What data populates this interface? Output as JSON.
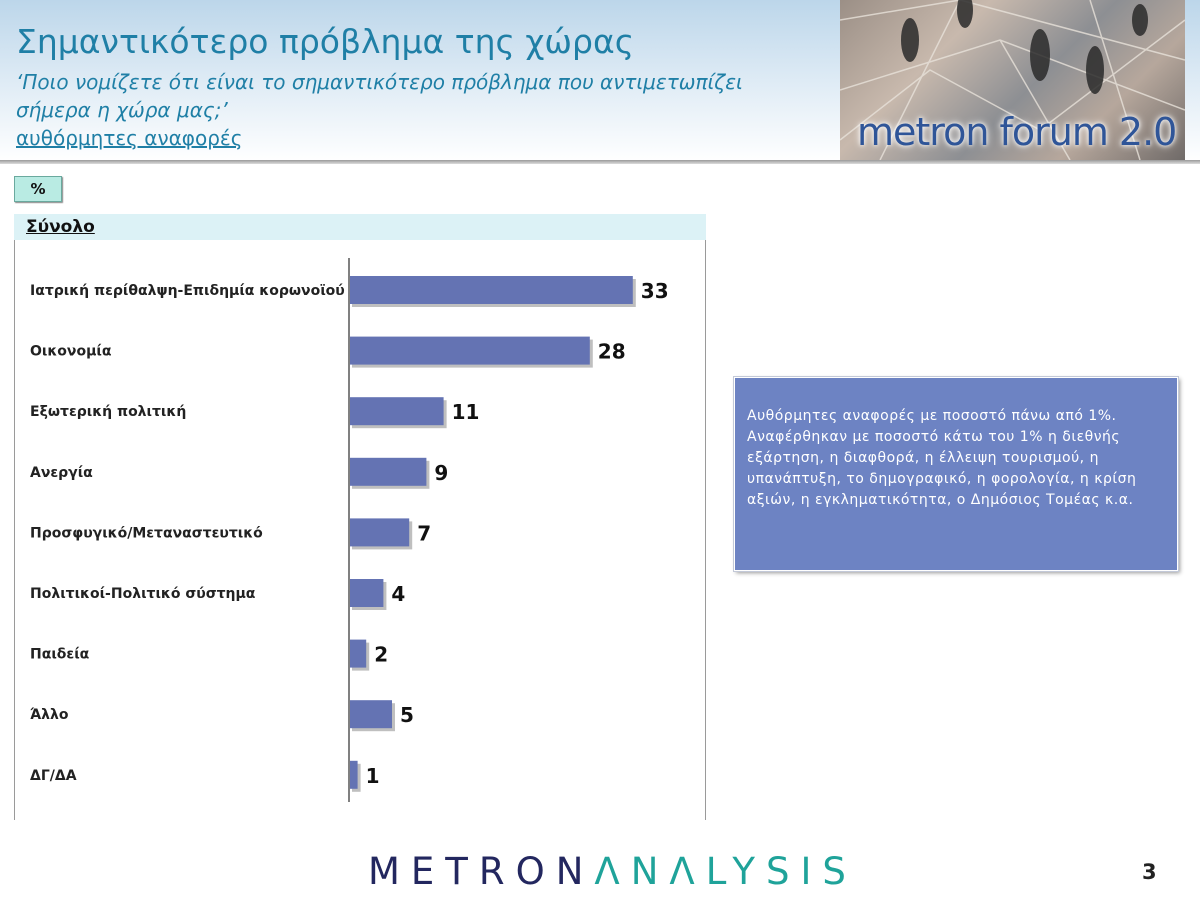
{
  "header": {
    "title": "Σημαντικότερο πρόβλημα της χώρας",
    "question": "‘Ποιο νομίζετε ότι  είναι το σημαντικότερο πρόβλημα που αντιμετωπίζει σήμερα η χώρα μας;’",
    "subnote": "αυθόρμητες αναφορές",
    "brand": "metron forum 2.0"
  },
  "unit_badge": "%",
  "chart_data": {
    "type": "bar",
    "orientation": "horizontal",
    "title": "Σύνολο",
    "categories": [
      "Ιατρική περίθαλψη-Επιδημία κορωνοϊού",
      "Οικονομία",
      "Εξωτερική πολιτική",
      "Ανεργία",
      "Προσφυγικό/Μεταναστευτικό",
      "Πολιτικοί-Πολιτικό σύστημα",
      "Παιδεία",
      "Άλλο",
      "ΔΓ/ΔΑ"
    ],
    "values": [
      33,
      28,
      11,
      9,
      7,
      4,
      2,
      5,
      1
    ],
    "xlim": [
      0,
      40
    ],
    "bar_color": "#6473b3",
    "grid": false
  },
  "note": "Αυθόρμητες αναφορές με ποσοστό πάνω από 1%. Αναφέρθηκαν με ποσοστό κάτω του 1% η διεθνής εξάρτηση, η διαφθορά, η έλλειψη τουρισμού, η υπανάπτυξη, το δημογραφικό, η φορολογία, η κρίση αξιών, η εγκληματικότητα, ο Δημόσιος Τομέας κ.α.",
  "footer": {
    "logo_part1": "METRON",
    "logo_part2": "ΛNΛLYSIS",
    "page_number": "3"
  },
  "colors": {
    "title": "#1f7fa6",
    "note_box": "#6d83c3",
    "logo_dark": "#23275f",
    "logo_teal": "#1fa39a"
  }
}
